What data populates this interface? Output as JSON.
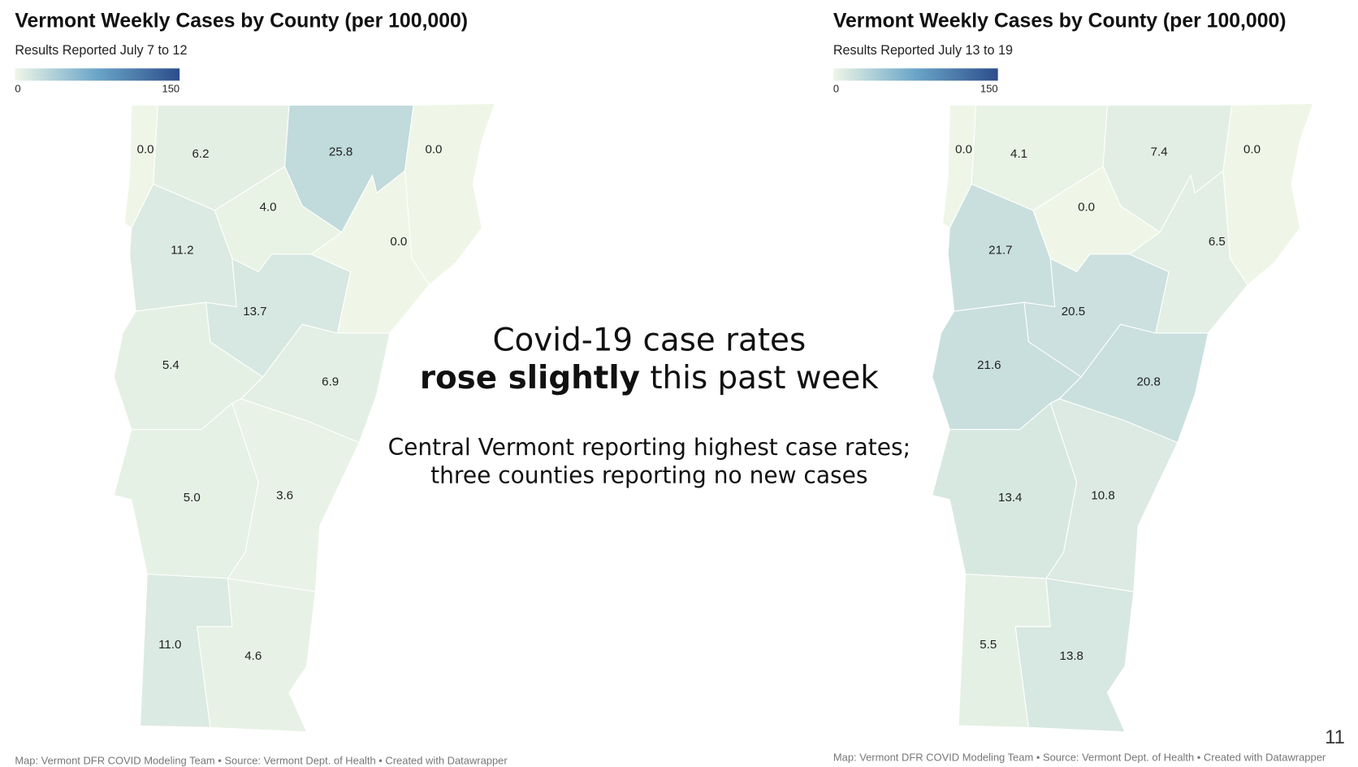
{
  "maps": [
    {
      "title": "Vermont Weekly Cases by County (per 100,000)",
      "subtitle": "Results Reported July 7 to 12",
      "scale": [
        0,
        150
      ],
      "scale_colors": [
        "#eff6e7",
        "#6aa5c8",
        "#2d4d8b"
      ],
      "values": [
        0,
        6.2,
        25.8,
        0,
        4.0,
        0,
        11.2,
        13.7,
        6.9,
        5.4,
        5.0,
        3.6,
        11.0,
        4.6
      ],
      "value_labels": [
        "0.0",
        "6.2",
        "25.8",
        "0.0",
        "4.0",
        "0.0",
        "11.2",
        "13.7",
        "6.9",
        "5.4",
        "5.0",
        "3.6",
        "11.0",
        "4.6"
      ],
      "source": "Map: Vermont DFR COVID Modeling Team • Source: Vermont Dept. of Health • Created with Datawrapper"
    },
    {
      "title": "Vermont Weekly Cases by County (per 100,000)",
      "subtitle": "Results Reported July 13 to 19",
      "scale": [
        0,
        150
      ],
      "scale_colors": [
        "#eff6e7",
        "#6aa5c8",
        "#2d4d8b"
      ],
      "values": [
        0,
        4.1,
        7.4,
        0,
        0,
        6.5,
        21.7,
        20.5,
        20.8,
        21.6,
        13.4,
        10.8,
        5.5,
        13.8
      ],
      "value_labels": [
        "0.0",
        "4.1",
        "7.4",
        "0.0",
        "0.0",
        "6.5",
        "21.7",
        "20.5",
        "20.8",
        "21.6",
        "13.4",
        "10.8",
        "5.5",
        "13.8"
      ],
      "source": "Map: Vermont DFR COVID Modeling Team • Source: Vermont Dept. of Health • Created with Datawrapper"
    }
  ],
  "center": {
    "line1": "Covid-19 case rates",
    "bold": "rose slightly",
    "rest": " this past week",
    "body": [
      "Central Vermont reporting highest case rates;",
      "three counties reporting no new cases"
    ]
  },
  "page_number": "11"
}
